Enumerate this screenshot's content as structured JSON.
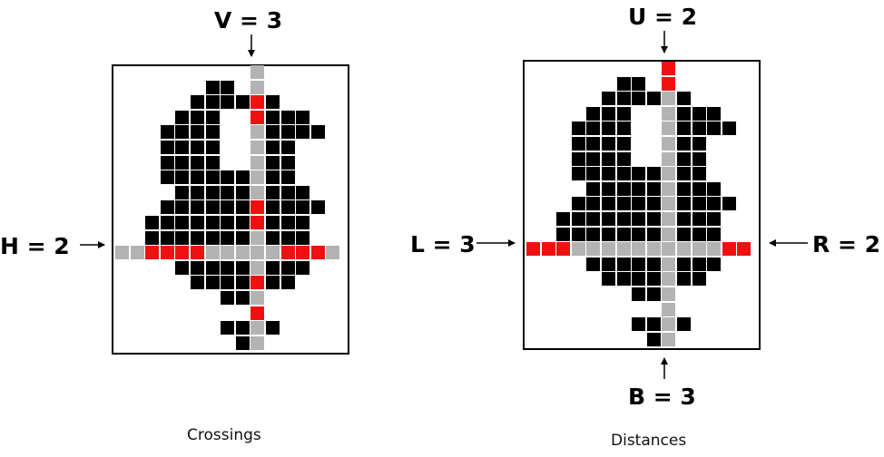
{
  "colors": {
    "background": "#ffffff",
    "ink": "#000000",
    "crossing": "#ee1111",
    "probe": "#b3b3b3",
    "pixel": "#000000"
  },
  "left_panel": {
    "caption": "Crossings",
    "v_label": "V = 3",
    "h_label": "H = 2"
  },
  "right_panel": {
    "caption": "Distances",
    "u_label": "U = 2",
    "l_label": "L = 3",
    "r_label": "R = 2",
    "b_label": "B = 3"
  }
}
